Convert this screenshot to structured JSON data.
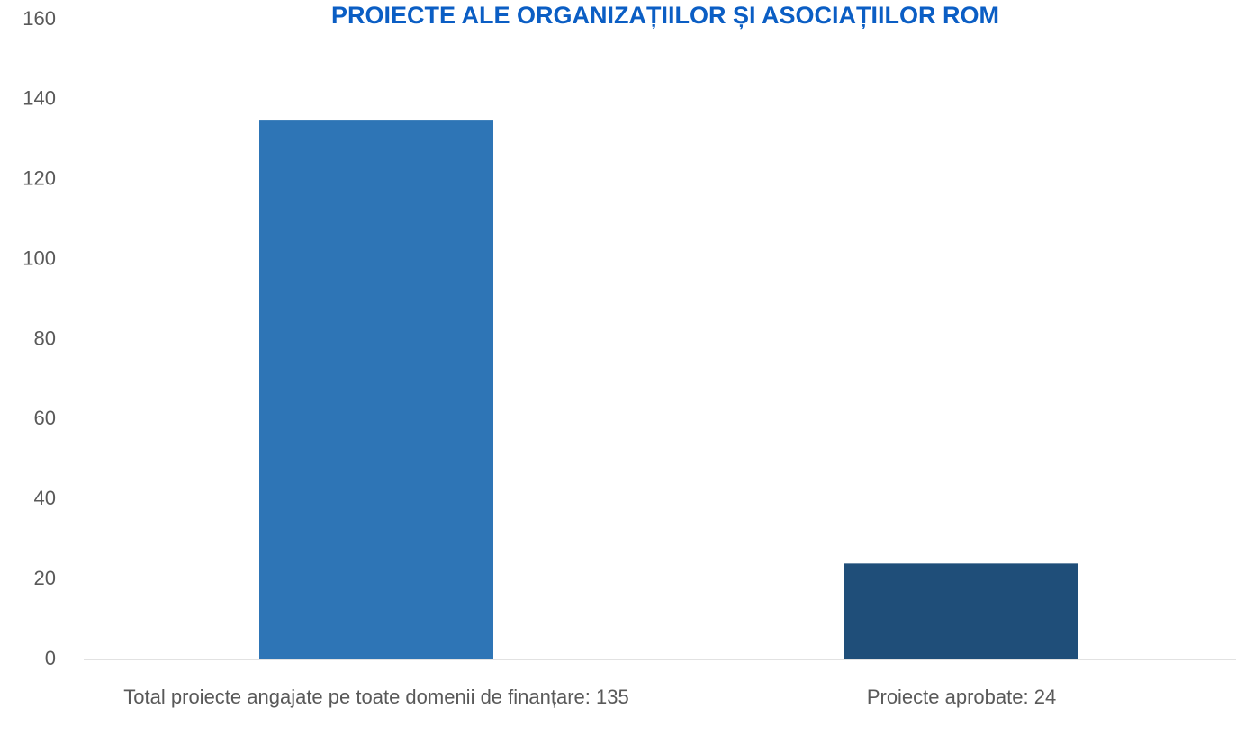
{
  "chart_data": {
    "type": "bar",
    "title": "PROIECTE ALE ORGANIZAȚIILOR ȘI ASOCIAȚIILOR ROM",
    "categories": [
      "Total proiecte angajate pe toate domenii de finanțare: 135",
      "Proiecte aprobate: 24"
    ],
    "values": [
      135,
      24
    ],
    "colors": [
      "#2e75b6",
      "#1f4e79"
    ],
    "ylim": [
      0,
      160
    ],
    "yticks": [
      0,
      20,
      40,
      60,
      80,
      100,
      120,
      140,
      160
    ],
    "grid": false
  }
}
